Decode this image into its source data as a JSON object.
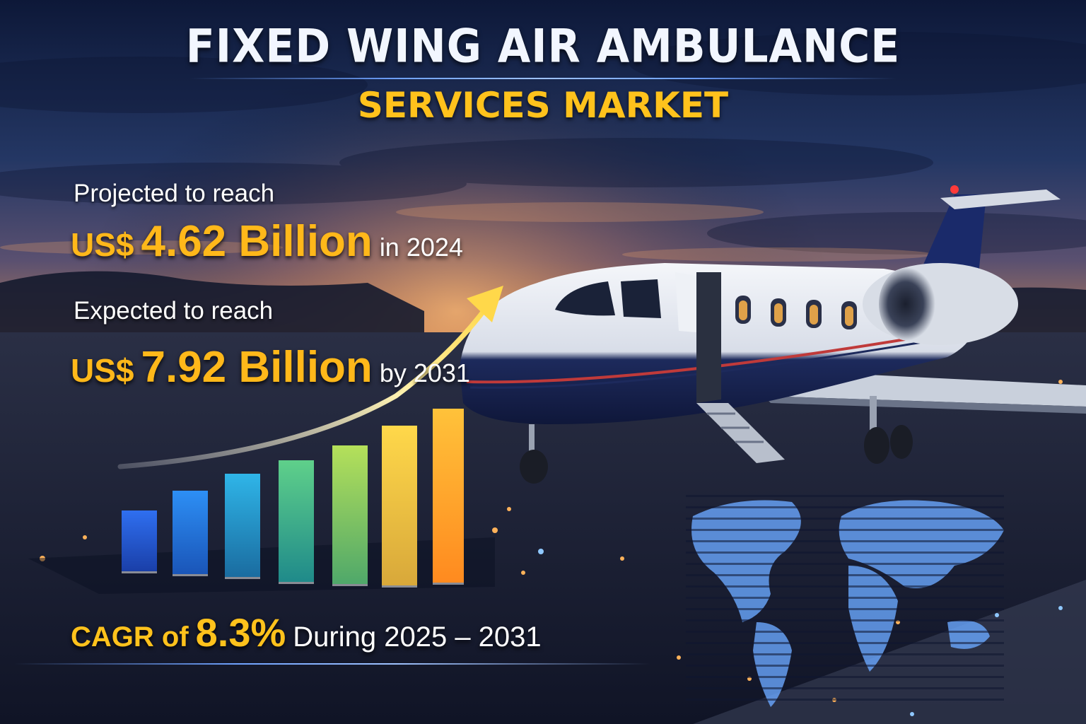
{
  "header": {
    "title_line1": "FIXED WING AIR AMBULANCE",
    "title_line2": "SERVICES MARKET"
  },
  "stats": {
    "current": {
      "label": "Projected to reach",
      "currency": "US$",
      "amount": "4.62 Billion",
      "suffix": "in 2024"
    },
    "forecast": {
      "label": "Expected to reach",
      "currency": "US$",
      "amount": "7.92 Billion",
      "suffix": "by 2031"
    }
  },
  "cagr": {
    "prefix": "CAGR of",
    "value": "8.3%",
    "period": "During 2025 – 2031"
  },
  "colors": {
    "accent_gold": "#ffb81a",
    "title_white": "#f2f6ff",
    "sky_dark": "#101a35",
    "glow_blue": "#6fa2ff"
  },
  "icons": {
    "growth_arrow": "upward-trend-arrow-icon",
    "world_map": "dotted-world-map-icon",
    "aircraft": "medical-jet-illustration"
  }
}
